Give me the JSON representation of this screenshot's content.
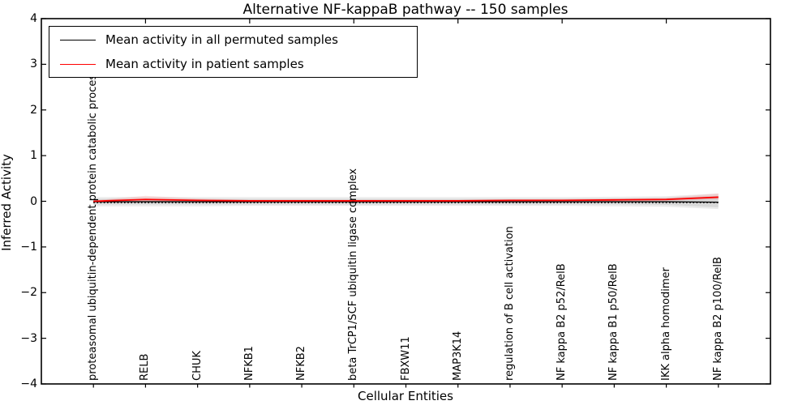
{
  "chart_data": {
    "type": "line",
    "title": "Alternative NF-kappaB pathway -- 150 samples",
    "xlabel": "Cellular Entities",
    "ylabel": "Inferred Activity",
    "ylim": [
      -4,
      4
    ],
    "xlim": [
      0,
      14
    ],
    "grid": false,
    "yticks": {
      "values": [
        4,
        3,
        2,
        1,
        0,
        -1,
        -2,
        -3,
        -4
      ],
      "labels": [
        "4",
        "3",
        "2",
        "1",
        "0",
        "−1",
        "−2",
        "−3",
        "−4"
      ]
    },
    "top_axis_ticks_x": [
      2,
      4,
      6,
      8,
      10,
      12
    ],
    "x": [
      1,
      2,
      3,
      4,
      5,
      6,
      7,
      8,
      9,
      10,
      11,
      12,
      13
    ],
    "categories": [
      "proteasomal ubiquitin-dependent protein catabolic process",
      "RELB",
      "CHUK",
      "NFKB1",
      "NFKB2",
      "beta TrCP1/SCF ubiquitin ligase complex",
      "FBXW11",
      "MAP3K14",
      "regulation of B cell activation",
      "NF kappa B2 p52/RelB",
      "NF kappa B1 p50/RelB",
      "IKK alpha homodimer",
      "NF kappa B2 p100/RelB"
    ],
    "series": [
      {
        "name": "Mean activity in all permuted samples",
        "color": "#000000",
        "width": 1.3,
        "values": [
          -0.01,
          -0.01,
          -0.01,
          -0.01,
          -0.01,
          -0.01,
          -0.01,
          -0.01,
          -0.01,
          -0.01,
          -0.01,
          -0.01,
          -0.02
        ]
      },
      {
        "name": "Mean activity in patient samples",
        "color": "#ff0000",
        "width": 1.8,
        "values": [
          0.0,
          0.04,
          0.02,
          0.01,
          0.01,
          0.01,
          0.01,
          0.01,
          0.02,
          0.02,
          0.03,
          0.04,
          0.09
        ]
      }
    ],
    "bands": [
      {
        "name": "permuted-spread-outer",
        "color": "rgba(0,0,0,0.08)",
        "upper": [
          0.09,
          0.1,
          0.09,
          0.09,
          0.09,
          0.09,
          0.09,
          0.09,
          0.09,
          0.09,
          0.1,
          0.11,
          0.17
        ],
        "lower": [
          -0.11,
          -0.11,
          -0.11,
          -0.1,
          -0.1,
          -0.1,
          -0.1,
          -0.1,
          -0.1,
          -0.1,
          -0.11,
          -0.12,
          -0.17
        ]
      },
      {
        "name": "permuted-spread-inner",
        "color": "rgba(0,0,0,0.08)",
        "upper": [
          0.05,
          0.05,
          0.05,
          0.05,
          0.05,
          0.05,
          0.05,
          0.05,
          0.05,
          0.05,
          0.06,
          0.07,
          0.12
        ],
        "lower": [
          -0.07,
          -0.07,
          -0.07,
          -0.07,
          -0.07,
          -0.07,
          -0.07,
          -0.07,
          -0.07,
          -0.07,
          -0.07,
          -0.08,
          -0.13
        ]
      },
      {
        "name": "patient-spread",
        "color": "rgba(255,0,0,0.11)",
        "upper": [
          0.02,
          0.12,
          0.06,
          0.03,
          0.03,
          0.03,
          0.03,
          0.03,
          0.04,
          0.05,
          0.06,
          0.08,
          0.17
        ],
        "lower": [
          -0.02,
          -0.02,
          -0.02,
          -0.01,
          -0.01,
          -0.01,
          -0.01,
          -0.01,
          -0.01,
          0.0,
          0.0,
          0.01,
          0.04
        ]
      }
    ],
    "zero_reference": {
      "value": -0.03,
      "style": "dotted",
      "color": "#000000"
    },
    "legend": {
      "position": "upper-left",
      "entries": [
        {
          "label": "Mean activity in all permuted samples",
          "color": "#000000"
        },
        {
          "label": "Mean activity in patient samples",
          "color": "#ff0000"
        }
      ]
    },
    "colors": {
      "frame": "#000000",
      "background": "#ffffff"
    }
  }
}
